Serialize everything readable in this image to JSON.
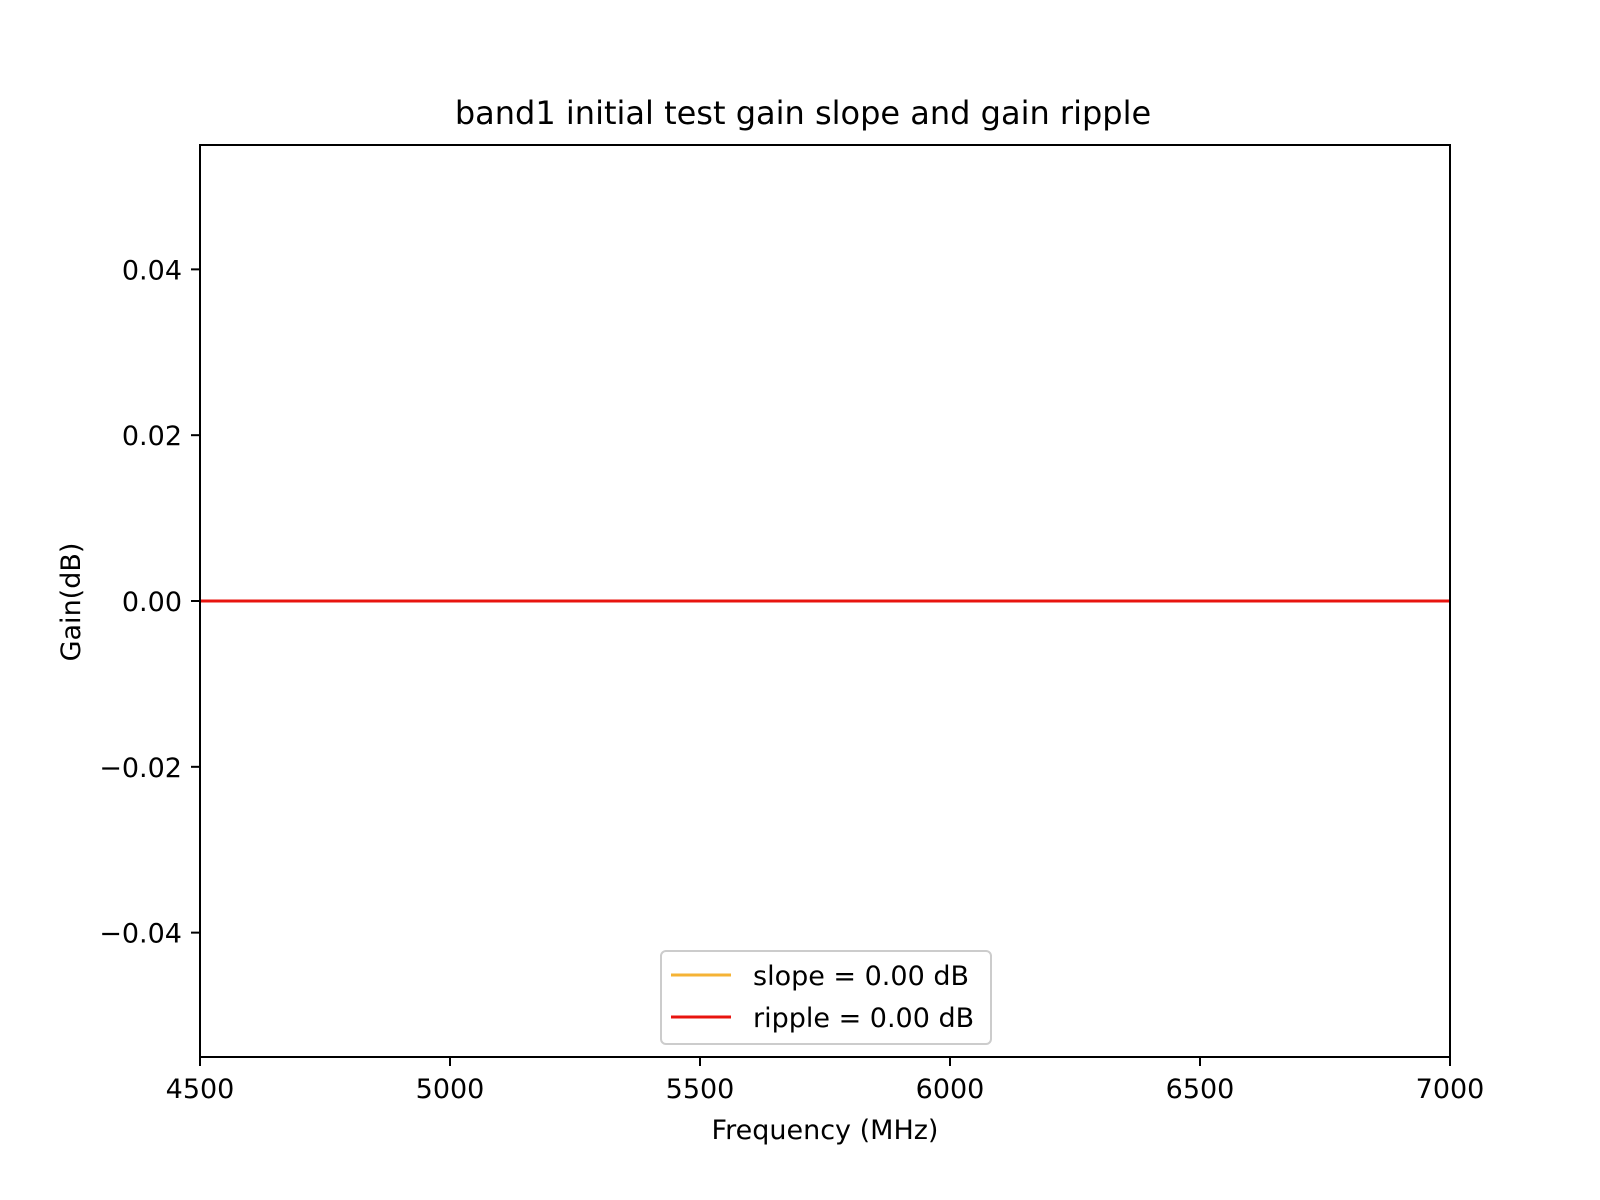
{
  "chart_data": {
    "type": "line",
    "title": "band1 initial test gain slope and gain ripple",
    "xlabel": "Frequency (MHz)",
    "ylabel": "Gain(dB)",
    "xlim": [
      4500,
      7000
    ],
    "ylim": [
      -0.055,
      0.055
    ],
    "xticks": [
      4500,
      5000,
      5500,
      6000,
      6500,
      7000
    ],
    "xtick_labels": [
      "4500",
      "5000",
      "5500",
      "6000",
      "6500",
      "7000"
    ],
    "yticks": [
      -0.04,
      -0.02,
      0.0,
      0.02,
      0.04
    ],
    "ytick_labels": [
      "−0.04",
      "−0.02",
      "0.00",
      "0.02",
      "0.04"
    ],
    "grid": false,
    "legend_position": "lower center",
    "series": [
      {
        "name": "slope = 0.00 dB",
        "color": "#f5b335",
        "x": [
          4500,
          7000
        ],
        "y": [
          0.0,
          0.0
        ]
      },
      {
        "name": "ripple = 0.00 dB",
        "color": "#e8140f",
        "x": [
          4500,
          7000
        ],
        "y": [
          0.0,
          0.0
        ]
      }
    ]
  }
}
